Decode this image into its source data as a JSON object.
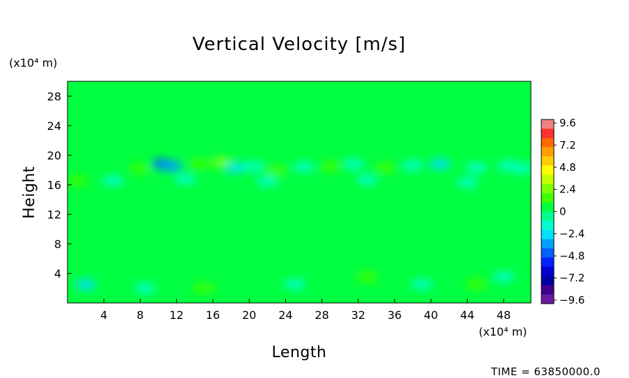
{
  "chart_data": {
    "type": "heatmap",
    "title": "Vertical Velocity [m/s]",
    "xlabel": "Length",
    "ylabel": "Height",
    "x_unit": "(x10⁴ m)",
    "y_unit": "(x10⁴ m)",
    "xlim": [
      0,
      51
    ],
    "ylim": [
      0,
      30
    ],
    "x_ticks": [
      4,
      8,
      12,
      16,
      20,
      24,
      28,
      32,
      36,
      40,
      44,
      48
    ],
    "y_ticks": [
      4,
      8,
      12,
      16,
      20,
      24,
      28
    ],
    "value_range": [
      -9.6,
      9.6
    ],
    "background_value": 0.3,
    "colorbar": {
      "labels": [
        "9.6",
        "7.2",
        "4.8",
        "2.4",
        "0",
        "−2.4",
        "−4.8",
        "−7.2",
        "−9.6"
      ],
      "colors": [
        "#f08080",
        "#ff3030",
        "#ff6a00",
        "#ffa000",
        "#ffd000",
        "#ffff00",
        "#c8ff00",
        "#80ff00",
        "#40ff00",
        "#00ff40",
        "#00ff90",
        "#00ffd0",
        "#00e0ff",
        "#00a0ff",
        "#0060ff",
        "#0020ff",
        "#0000d0",
        "#0000a0",
        "#400090",
        "#6a1aa0"
      ]
    },
    "features": [
      {
        "x": 10.5,
        "y": 18.8,
        "value": -4.5
      },
      {
        "x": 11.5,
        "y": 18.5,
        "value": -3.5
      },
      {
        "x": 14.5,
        "y": 18.8,
        "value": 1.8
      },
      {
        "x": 17.0,
        "y": 19.0,
        "value": 2.8
      },
      {
        "x": 18.5,
        "y": 18.3,
        "value": -2.0
      },
      {
        "x": 8.0,
        "y": 18.2,
        "value": 1.2
      },
      {
        "x": 20.5,
        "y": 18.5,
        "value": -1.5
      },
      {
        "x": 23.0,
        "y": 17.9,
        "value": 1.2
      },
      {
        "x": 26.0,
        "y": 18.4,
        "value": -1.8
      },
      {
        "x": 29.0,
        "y": 18.5,
        "value": 1.4
      },
      {
        "x": 31.5,
        "y": 18.8,
        "value": -1.6
      },
      {
        "x": 35.0,
        "y": 18.3,
        "value": 1.3
      },
      {
        "x": 38.0,
        "y": 18.6,
        "value": -1.2
      },
      {
        "x": 41.0,
        "y": 18.8,
        "value": -2.2
      },
      {
        "x": 45.0,
        "y": 18.3,
        "value": -1.5
      },
      {
        "x": 48.5,
        "y": 18.6,
        "value": -1.4
      },
      {
        "x": 50.0,
        "y": 18.2,
        "value": -1.2
      },
      {
        "x": 1.0,
        "y": 16.5,
        "value": 1.6
      },
      {
        "x": 5.0,
        "y": 16.5,
        "value": -1.3
      },
      {
        "x": 13.0,
        "y": 16.8,
        "value": -1.6
      },
      {
        "x": 22.0,
        "y": 16.5,
        "value": -1.2
      },
      {
        "x": 33.0,
        "y": 16.7,
        "value": -1.0
      },
      {
        "x": 44.0,
        "y": 16.3,
        "value": -1.1
      },
      {
        "x": 2.0,
        "y": 2.5,
        "value": -2.0
      },
      {
        "x": 8.5,
        "y": 2.0,
        "value": -1.6
      },
      {
        "x": 15.0,
        "y": 2.0,
        "value": 1.2
      },
      {
        "x": 25.0,
        "y": 2.5,
        "value": -1.3
      },
      {
        "x": 33.0,
        "y": 3.5,
        "value": 1.1
      },
      {
        "x": 39.0,
        "y": 2.5,
        "value": -1.4
      },
      {
        "x": 45.0,
        "y": 2.5,
        "value": 1.4
      },
      {
        "x": 48.0,
        "y": 3.5,
        "value": -1.2
      }
    ]
  },
  "footer": {
    "time_text": "TIME  =  63850000.0"
  }
}
